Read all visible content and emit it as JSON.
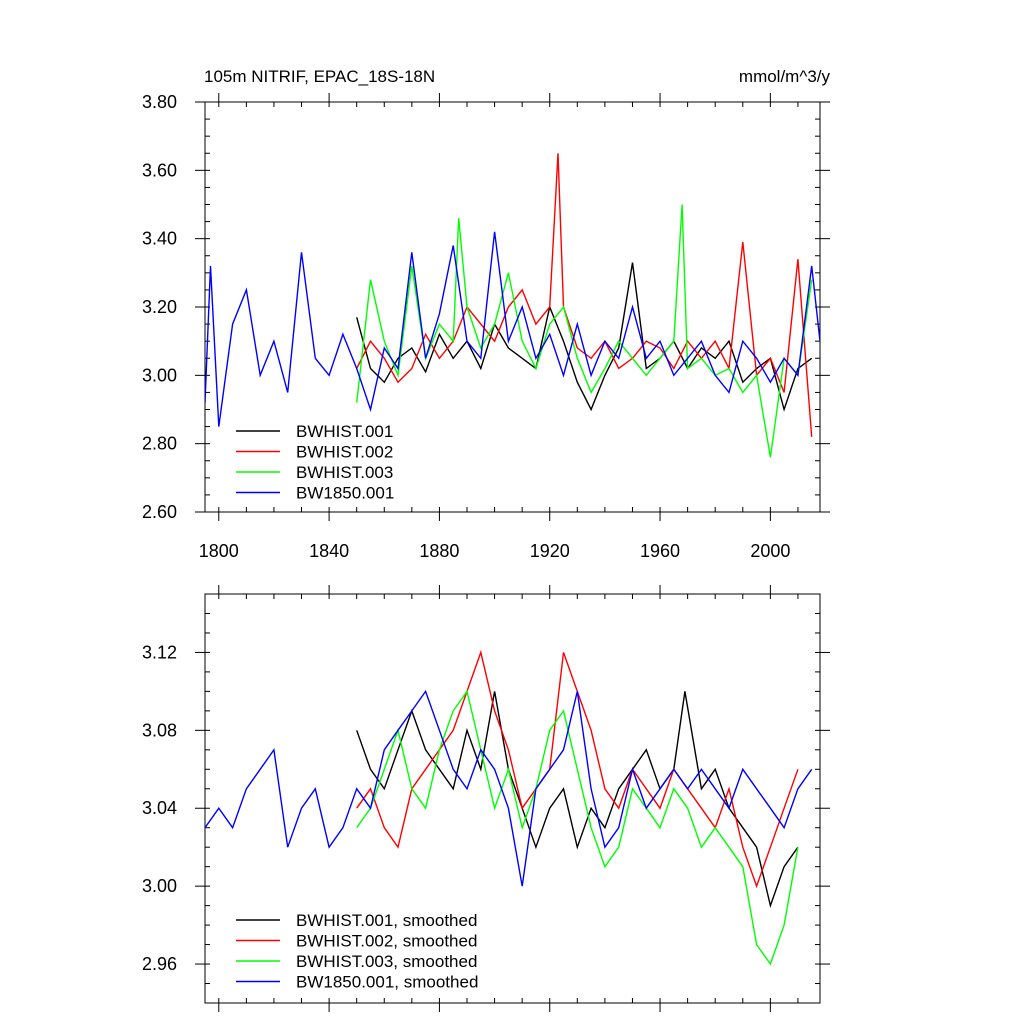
{
  "chart_data": [
    {
      "type": "line",
      "title": "105m NITRIF, EPAC_18S-18N",
      "units": "mmol/m^3/y",
      "xlabel": "",
      "ylabel": "",
      "xlim": [
        1795,
        2018
      ],
      "ylim": [
        2.6,
        3.8
      ],
      "x_ticks": [
        1800,
        1840,
        1880,
        1920,
        1960,
        2000
      ],
      "x_tick_labels": [
        "1800",
        "1840",
        "1880",
        "1920",
        "1960",
        "2000"
      ],
      "y_ticks": [
        2.6,
        2.8,
        3.0,
        3.2,
        3.4,
        3.6,
        3.8
      ],
      "y_tick_labels": [
        "2.60",
        "2.80",
        "3.00",
        "3.20",
        "3.40",
        "3.60",
        "3.80"
      ],
      "legend_position": "bottom-left",
      "series": [
        {
          "name": "BWHIST.001",
          "color": "#000000",
          "x": [
            1850,
            1855,
            1860,
            1865,
            1870,
            1875,
            1880,
            1885,
            1890,
            1895,
            1900,
            1905,
            1910,
            1915,
            1920,
            1925,
            1930,
            1935,
            1940,
            1945,
            1950,
            1955,
            1960,
            1965,
            1970,
            1975,
            1980,
            1985,
            1990,
            1995,
            2000,
            2005,
            2010,
            2015
          ],
          "values": [
            3.17,
            3.02,
            2.98,
            3.05,
            3.08,
            3.01,
            3.12,
            3.05,
            3.1,
            3.02,
            3.15,
            3.08,
            3.05,
            3.02,
            3.2,
            3.1,
            2.98,
            2.9,
            3.0,
            3.08,
            3.33,
            3.02,
            3.05,
            3.1,
            3.02,
            3.08,
            3.05,
            3.1,
            2.98,
            3.02,
            3.05,
            2.9,
            3.02,
            3.05
          ]
        },
        {
          "name": "BWHIST.002",
          "color": "#ff0000",
          "x": [
            1850,
            1855,
            1860,
            1865,
            1870,
            1875,
            1880,
            1885,
            1890,
            1895,
            1900,
            1905,
            1910,
            1915,
            1920,
            1923,
            1925,
            1930,
            1935,
            1940,
            1945,
            1950,
            1955,
            1960,
            1965,
            1970,
            1975,
            1980,
            1985,
            1990,
            1995,
            2000,
            2005,
            2010,
            2015
          ],
          "values": [
            3.02,
            3.1,
            3.05,
            2.98,
            3.02,
            3.12,
            3.05,
            3.1,
            3.2,
            3.15,
            3.1,
            3.2,
            3.25,
            3.15,
            3.2,
            3.65,
            3.2,
            3.08,
            3.05,
            3.1,
            3.02,
            3.05,
            3.1,
            3.08,
            3.02,
            3.1,
            3.05,
            3.1,
            3.02,
            3.39,
            3.0,
            3.05,
            2.95,
            3.34,
            2.82
          ]
        },
        {
          "name": "BWHIST.003",
          "color": "#00ff00",
          "x": [
            1850,
            1855,
            1860,
            1865,
            1870,
            1875,
            1880,
            1885,
            1887,
            1890,
            1895,
            1900,
            1905,
            1910,
            1915,
            1920,
            1925,
            1930,
            1935,
            1940,
            1945,
            1950,
            1955,
            1960,
            1965,
            1968,
            1970,
            1975,
            1980,
            1985,
            1990,
            1995,
            2000,
            2005,
            2010,
            2015
          ],
          "values": [
            2.92,
            3.28,
            3.1,
            3.0,
            3.32,
            3.05,
            3.15,
            3.1,
            3.46,
            3.2,
            3.08,
            3.15,
            3.3,
            3.1,
            3.02,
            3.15,
            3.2,
            3.05,
            2.95,
            3.02,
            3.1,
            3.05,
            3.0,
            3.05,
            3.1,
            3.5,
            3.02,
            3.05,
            3.0,
            3.02,
            2.95,
            3.0,
            2.76,
            3.05,
            3.0,
            3.28
          ]
        },
        {
          "name": "BW1850.001",
          "color": "#0000ff",
          "x": [
            1795,
            1797,
            1800,
            1805,
            1810,
            1815,
            1820,
            1825,
            1830,
            1835,
            1840,
            1845,
            1850,
            1855,
            1860,
            1865,
            1870,
            1875,
            1880,
            1885,
            1890,
            1895,
            1900,
            1905,
            1910,
            1915,
            1920,
            1925,
            1930,
            1935,
            1940,
            1945,
            1950,
            1955,
            1960,
            1965,
            1970,
            1975,
            1980,
            1985,
            1990,
            1995,
            2000,
            2005,
            2010,
            2015,
            2018
          ],
          "values": [
            2.92,
            3.32,
            2.85,
            3.15,
            3.25,
            3.0,
            3.1,
            2.95,
            3.36,
            3.05,
            3.0,
            3.12,
            3.02,
            2.9,
            3.08,
            3.02,
            3.36,
            3.05,
            3.18,
            3.38,
            3.1,
            3.05,
            3.42,
            3.1,
            3.2,
            3.05,
            3.12,
            3.0,
            3.15,
            3.0,
            3.1,
            3.05,
            3.2,
            3.05,
            3.1,
            3.0,
            3.05,
            3.1,
            3.0,
            2.95,
            3.1,
            3.05,
            2.98,
            3.05,
            3.0,
            3.32,
            3.1
          ]
        }
      ]
    },
    {
      "type": "line",
      "title": "",
      "xlabel": "",
      "ylabel": "",
      "xlim": [
        1795,
        2018
      ],
      "ylim": [
        2.94,
        3.15
      ],
      "x_ticks": [
        1800,
        1840,
        1880,
        1920,
        1960,
        2000
      ],
      "y_ticks": [
        2.96,
        3.0,
        3.04,
        3.08,
        3.12
      ],
      "y_tick_labels": [
        "2.96",
        "3.00",
        "3.04",
        "3.08",
        "3.12"
      ],
      "legend_position": "bottom-left",
      "series": [
        {
          "name": "BWHIST.001, smoothed",
          "color": "#000000",
          "x": [
            1850,
            1855,
            1860,
            1865,
            1870,
            1875,
            1880,
            1885,
            1890,
            1895,
            1900,
            1905,
            1910,
            1915,
            1920,
            1925,
            1930,
            1935,
            1940,
            1945,
            1950,
            1955,
            1960,
            1965,
            1969,
            1975,
            1980,
            1985,
            1990,
            1995,
            2000,
            2005,
            2010
          ],
          "values": [
            3.08,
            3.06,
            3.05,
            3.07,
            3.09,
            3.07,
            3.06,
            3.05,
            3.08,
            3.06,
            3.1,
            3.06,
            3.04,
            3.02,
            3.04,
            3.05,
            3.02,
            3.04,
            3.03,
            3.05,
            3.06,
            3.07,
            3.05,
            3.06,
            3.1,
            3.05,
            3.06,
            3.04,
            3.03,
            3.02,
            2.99,
            3.01,
            3.02
          ]
        },
        {
          "name": "BWHIST.002, smoothed",
          "color": "#ff0000",
          "x": [
            1850,
            1855,
            1860,
            1865,
            1870,
            1875,
            1880,
            1885,
            1890,
            1895,
            1900,
            1905,
            1910,
            1915,
            1920,
            1925,
            1930,
            1935,
            1940,
            1945,
            1950,
            1955,
            1960,
            1965,
            1970,
            1975,
            1980,
            1985,
            1990,
            1995,
            2000,
            2005,
            2010
          ],
          "values": [
            3.04,
            3.05,
            3.03,
            3.02,
            3.05,
            3.06,
            3.07,
            3.08,
            3.1,
            3.12,
            3.09,
            3.07,
            3.04,
            3.05,
            3.06,
            3.12,
            3.1,
            3.08,
            3.05,
            3.04,
            3.06,
            3.05,
            3.04,
            3.06,
            3.05,
            3.04,
            3.03,
            3.05,
            3.02,
            3.0,
            3.02,
            3.04,
            3.06
          ]
        },
        {
          "name": "BWHIST.003, smoothed",
          "color": "#00ff00",
          "x": [
            1850,
            1855,
            1860,
            1865,
            1870,
            1875,
            1880,
            1885,
            1890,
            1895,
            1900,
            1905,
            1910,
            1915,
            1920,
            1925,
            1930,
            1935,
            1940,
            1945,
            1950,
            1955,
            1960,
            1965,
            1970,
            1975,
            1980,
            1985,
            1990,
            1995,
            2000,
            2005,
            2010
          ],
          "values": [
            3.03,
            3.04,
            3.06,
            3.08,
            3.05,
            3.04,
            3.07,
            3.09,
            3.1,
            3.07,
            3.04,
            3.06,
            3.03,
            3.05,
            3.08,
            3.09,
            3.06,
            3.03,
            3.01,
            3.02,
            3.05,
            3.04,
            3.03,
            3.05,
            3.04,
            3.02,
            3.03,
            3.02,
            3.01,
            2.97,
            2.96,
            2.98,
            3.02
          ]
        },
        {
          "name": "BW1850.001, smoothed",
          "color": "#0000ff",
          "x": [
            1795,
            1800,
            1805,
            1810,
            1815,
            1820,
            1825,
            1830,
            1835,
            1840,
            1845,
            1850,
            1855,
            1860,
            1865,
            1870,
            1875,
            1880,
            1885,
            1890,
            1895,
            1900,
            1905,
            1910,
            1915,
            1920,
            1925,
            1930,
            1935,
            1940,
            1945,
            1950,
            1955,
            1960,
            1965,
            1970,
            1975,
            1980,
            1985,
            1990,
            1995,
            2000,
            2005,
            2010,
            2015
          ],
          "values": [
            3.03,
            3.04,
            3.03,
            3.05,
            3.06,
            3.07,
            3.02,
            3.04,
            3.05,
            3.02,
            3.03,
            3.05,
            3.04,
            3.07,
            3.08,
            3.09,
            3.1,
            3.08,
            3.06,
            3.05,
            3.07,
            3.06,
            3.04,
            3.0,
            3.05,
            3.06,
            3.07,
            3.1,
            3.05,
            3.02,
            3.03,
            3.06,
            3.04,
            3.05,
            3.06,
            3.05,
            3.06,
            3.05,
            3.04,
            3.06,
            3.05,
            3.04,
            3.03,
            3.05,
            3.06
          ]
        }
      ]
    }
  ]
}
